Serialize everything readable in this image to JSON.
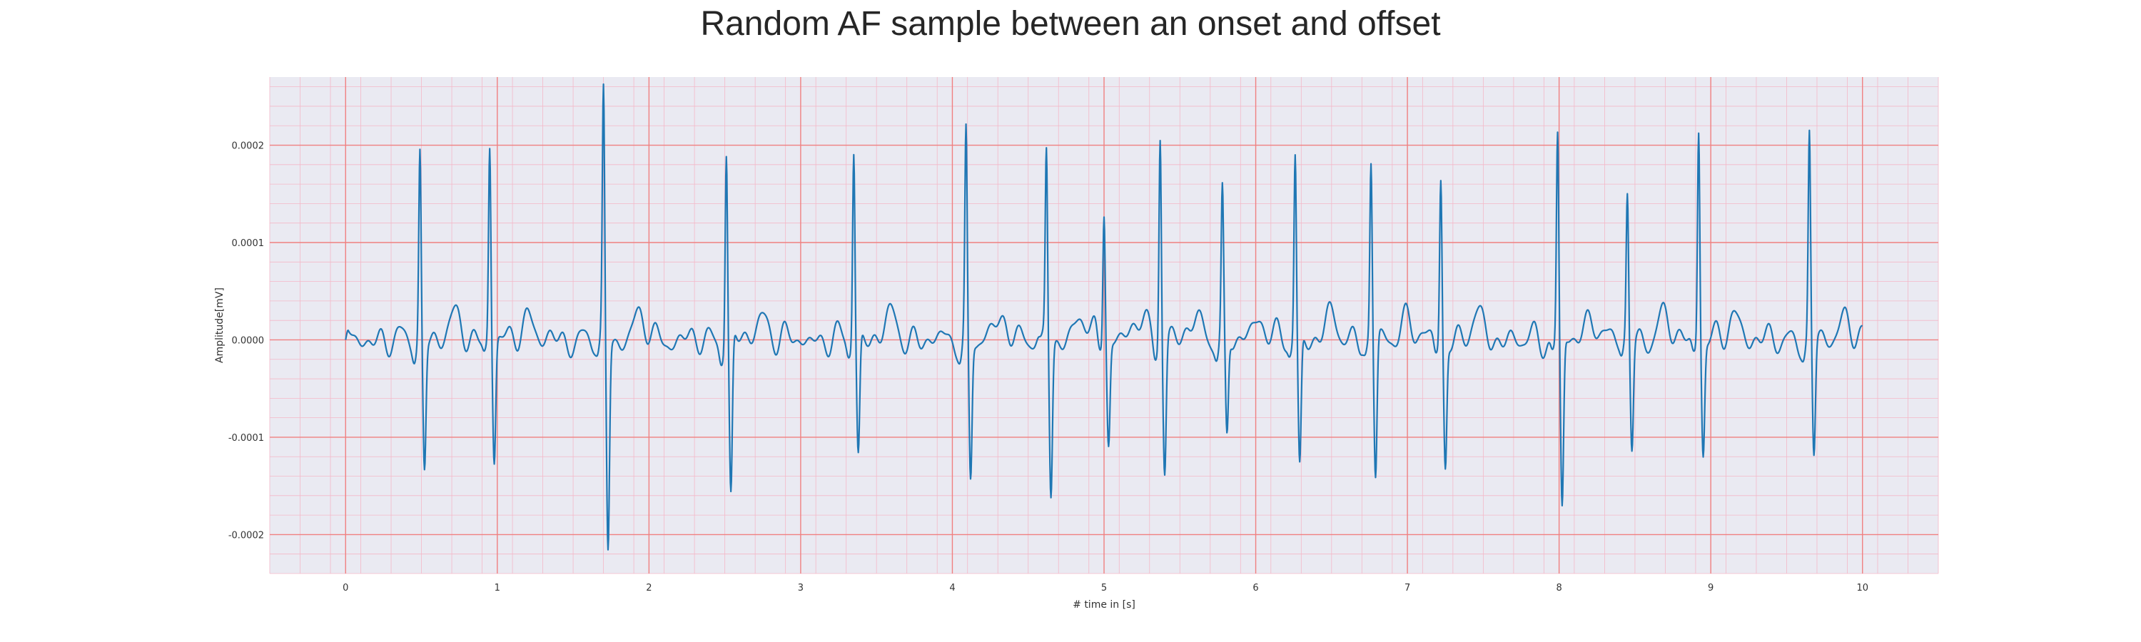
{
  "chart_data": {
    "type": "line",
    "title": "Random AF sample between an onset and offset",
    "xlabel": "# time in [s]",
    "ylabel": "Amplitude[mV]",
    "xlim": [
      -0.5,
      10.5
    ],
    "ylim": [
      -0.00024,
      0.00027
    ],
    "x_ticks": [
      0,
      1,
      2,
      3,
      4,
      5,
      6,
      7,
      8,
      9,
      10
    ],
    "x_tick_labels": [
      "0",
      "1",
      "2",
      "3",
      "4",
      "5",
      "6",
      "7",
      "8",
      "9",
      "10"
    ],
    "y_ticks": [
      -0.0002,
      -0.0001,
      0.0,
      0.0001,
      0.0002
    ],
    "y_tick_labels": [
      "-0.0002",
      "-0.0001",
      "0.0000",
      "0.0001",
      "0.0002"
    ],
    "grid": {
      "major": true,
      "minor": true
    },
    "colors": {
      "line": "#1f77b4",
      "plot_background": "#eaeaf2",
      "major_grid": "#f08080",
      "minor_grid": "#f4b8c8"
    },
    "series": [
      {
        "beats": [
          {
            "t": 0.49,
            "peak": 0.000192,
            "trough": -0.000132
          },
          {
            "t": 0.95,
            "peak": 0.0002,
            "trough": -0.000125
          },
          {
            "t": 1.7,
            "peak": 0.00025,
            "trough": -0.000215
          },
          {
            "t": 2.51,
            "peak": 0.000197,
            "trough": -0.000168
          },
          {
            "t": 3.35,
            "peak": 0.0002,
            "trough": -0.00012
          },
          {
            "t": 4.09,
            "peak": 0.000207,
            "trough": -0.000145
          },
          {
            "t": 4.62,
            "peak": 0.000195,
            "trough": -0.000153
          },
          {
            "t": 5.0,
            "peak": 0.00014,
            "trough": -0.000103
          },
          {
            "t": 5.37,
            "peak": 0.000218,
            "trough": -0.000133
          },
          {
            "t": 5.78,
            "peak": 0.000145,
            "trough": -0.000107
          },
          {
            "t": 6.26,
            "peak": 0.00019,
            "trough": -0.000133
          },
          {
            "t": 6.76,
            "peak": 0.00018,
            "trough": -0.000143
          },
          {
            "t": 7.22,
            "peak": 0.000168,
            "trough": -0.00013
          },
          {
            "t": 7.99,
            "peak": 0.000213,
            "trough": -0.000175
          },
          {
            "t": 8.45,
            "peak": 0.000145,
            "trough": -0.000111
          },
          {
            "t": 8.92,
            "peak": 0.000222,
            "trough": -0.000114
          },
          {
            "t": 9.65,
            "peak": 0.000207,
            "trough": -0.00012
          }
        ]
      }
    ]
  }
}
